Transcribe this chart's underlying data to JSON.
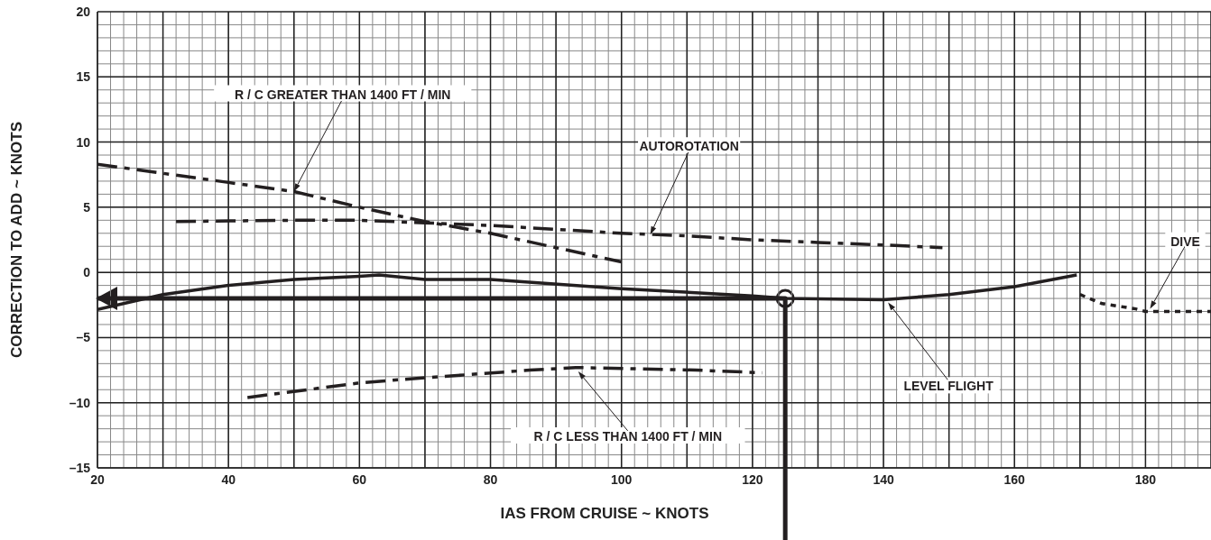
{
  "chart_data": {
    "type": "line",
    "xlabel": "IAS FROM CRUISE ~ KNOTS",
    "ylabel": "CORRECTION TO ADD ~ KNOTS",
    "xlim": [
      20,
      190
    ],
    "xticks": [
      20,
      40,
      60,
      80,
      100,
      120,
      140,
      160,
      180
    ],
    "ylim": [
      -15,
      20
    ],
    "yticks": [
      {
        "value": -15,
        "label": "–15"
      },
      {
        "value": -10,
        "label": "–10"
      },
      {
        "value": -5,
        "label": "–5"
      },
      0,
      5,
      10,
      15,
      20
    ],
    "grid": true,
    "marker": "none",
    "series": [
      {
        "color": "#231f20",
        "line_style": "dashed",
        "x": [
          20,
          30,
          40,
          50,
          60,
          70,
          80,
          90,
          100
        ],
        "values": [
          8.3,
          7.6,
          6.9,
          6.2,
          5.0,
          3.9,
          3.0,
          1.9,
          0.8
        ]
      },
      {
        "color": "#231f20",
        "line_style": "dashed",
        "x": [
          32,
          50,
          60,
          70,
          80,
          90,
          100,
          110,
          120,
          130,
          140,
          149
        ],
        "values": [
          3.9,
          4.0,
          4.0,
          3.8,
          3.6,
          3.3,
          3.0,
          2.8,
          2.5,
          2.3,
          2.1,
          1.9
        ]
      },
      {
        "color": "#231f20",
        "line_style": "solid",
        "x": [
          20,
          30,
          40,
          50,
          60,
          63,
          70,
          80,
          100,
          120,
          125,
          140,
          150,
          160,
          169.5
        ],
        "values": [
          -2.85,
          -1.7,
          -1.0,
          -0.55,
          -0.3,
          -0.2,
          -0.55,
          -0.55,
          -1.25,
          -1.8,
          -2.0,
          -2.1,
          -1.7,
          -1.1,
          -0.2
        ]
      },
      {
        "color": "#231f20",
        "line_style": "dotted",
        "x": [
          170,
          173.4,
          178.5,
          180,
          190
        ],
        "values": [
          -1.7,
          -2.4,
          -2.8,
          -3.0,
          -3.0
        ]
      },
      {
        "color": "#231f20",
        "line_style": "dashed",
        "x": [
          42.9,
          59.7,
          67,
          86,
          93,
          111.4,
          121.5
        ],
        "values": [
          -9.6,
          -8.5,
          -8.2,
          -7.5,
          -7.3,
          -7.5,
          -7.7
        ]
      },
      {
        "color": "#231f20",
        "line_style": "solid",
        "x": [
          20,
          125,
          125
        ],
        "values": [
          -2,
          -2,
          -15
        ]
      }
    ],
    "annotations": [
      {
        "text": "R / C GREATER THAN 1400 FT / MIN",
        "x": 50,
        "y": 6.2
      },
      {
        "text": "AUTOROTATION",
        "x": 104.4,
        "y": 2.9
      },
      {
        "text": "DIVE",
        "x": 180.7,
        "y": -2.8
      },
      {
        "text": "LEVEL FLIGHT",
        "x": 140.7,
        "y": -2.3
      },
      {
        "text": "R / C LESS THAN 1400 FT / MIN",
        "x": 93.4,
        "y": -7.6
      }
    ]
  }
}
